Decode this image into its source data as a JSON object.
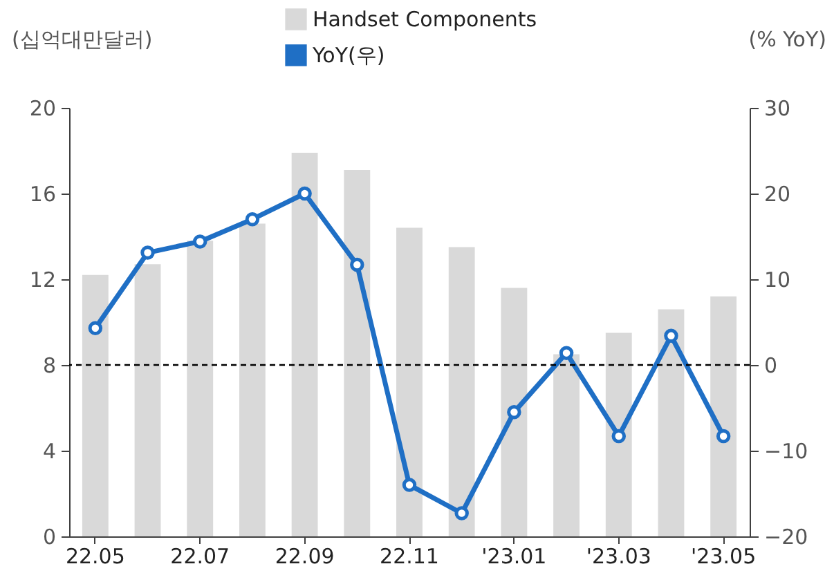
{
  "chart_data": {
    "type": "bar",
    "categories": [
      "22.05",
      null,
      "22.07",
      null,
      "22.09",
      null,
      "22.11",
      null,
      "'23.01",
      null,
      "'23.03",
      null,
      "'23.05"
    ],
    "ylabel": "(십억대만달러)",
    "y2label": "(% YoY)",
    "ylim": [
      0,
      20
    ],
    "yticks": [
      0,
      4,
      8,
      12,
      16,
      20
    ],
    "y2lim": [
      -20,
      30
    ],
    "y2ticks": [
      -20,
      -10,
      0,
      10,
      20,
      30
    ],
    "series": [
      {
        "name": "Handset Components",
        "color": "#d9d9d9",
        "values": [
          12.2,
          12.7,
          13.8,
          14.6,
          17.9,
          17.1,
          14.4,
          13.5,
          11.6,
          8.5,
          9.5,
          10.6,
          11.2
        ]
      },
      {
        "name": "YoY(우)",
        "type": "line",
        "axis": "y2",
        "color": "#1f6fc5",
        "marker": "circle",
        "values": [
          4.3,
          13.1,
          14.4,
          17.0,
          20.0,
          11.7,
          -14.0,
          -17.3,
          -5.5,
          1.4,
          -8.3,
          3.4,
          -8.3
        ]
      }
    ],
    "ref_lines": [
      {
        "axis": "y2",
        "value": 0,
        "color": "#000000",
        "line_style": "dashed"
      }
    ],
    "grid": false,
    "legend": "top"
  }
}
